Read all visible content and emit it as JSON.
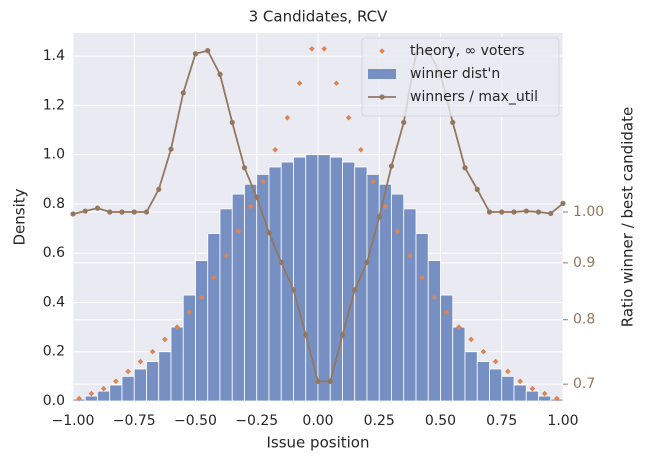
{
  "chart_data": {
    "type": "histogram",
    "title": "3 Candidates, RCV",
    "xlabel": "Issue position",
    "ylabel": "Density",
    "y2label": "Ratio winner / best candidate",
    "bins": [
      -1,
      -0.95,
      -0.9,
      -0.85,
      -0.8,
      -0.75,
      -0.7,
      -0.65,
      -0.6,
      -0.55,
      -0.5,
      -0.45,
      -0.4,
      -0.35,
      -0.3,
      -0.25,
      -0.2,
      -0.15,
      -0.1,
      -0.05,
      0,
      0.05,
      0.1,
      0.15,
      0.2,
      0.25,
      0.3,
      0.35,
      0.4,
      0.45,
      0.5,
      0.55,
      0.6,
      0.65,
      0.7,
      0.75,
      0.8,
      0.85,
      0.9,
      0.95,
      1
    ],
    "series": [
      {
        "name": "theory, ∞ voters",
        "type": "scatter",
        "color": "#dd8452",
        "x": [
          -0.975,
          -0.925,
          -0.875,
          -0.825,
          -0.775,
          -0.725,
          -0.675,
          -0.625,
          -0.575,
          -0.525,
          -0.475,
          -0.425,
          -0.375,
          -0.325,
          -0.275,
          -0.225,
          -0.175,
          -0.125,
          -0.075,
          -0.025,
          0.025,
          0.075,
          0.125,
          0.175,
          0.225,
          0.275,
          0.325,
          0.375,
          0.425,
          0.475,
          0.525,
          0.575,
          0.625,
          0.675,
          0.725,
          0.775,
          0.825,
          0.875,
          0.925,
          0.975
        ],
        "values": [
          0.01,
          0.03,
          0.05,
          0.08,
          0.12,
          0.16,
          0.2,
          0.25,
          0.3,
          0.36,
          0.42,
          0.5,
          0.59,
          0.69,
          0.79,
          0.89,
          1.02,
          1.15,
          1.29,
          1.43,
          1.43,
          1.29,
          1.15,
          1.02,
          0.89,
          0.79,
          0.69,
          0.59,
          0.5,
          0.42,
          0.36,
          0.3,
          0.25,
          0.2,
          0.16,
          0.12,
          0.08,
          0.05,
          0.03,
          0.01
        ]
      },
      {
        "name": "winner dist'n",
        "type": "histogram",
        "color": "#7790c4",
        "values": [
          0.008,
          0.02,
          0.04,
          0.065,
          0.1,
          0.13,
          0.16,
          0.2,
          0.3,
          0.43,
          0.57,
          0.68,
          0.78,
          0.84,
          0.88,
          0.92,
          0.95,
          0.97,
          0.99,
          1.0,
          1.0,
          0.99,
          0.97,
          0.95,
          0.92,
          0.88,
          0.84,
          0.78,
          0.68,
          0.57,
          0.43,
          0.3,
          0.2,
          0.16,
          0.13,
          0.1,
          0.065,
          0.04,
          0.02,
          0.008
        ]
      },
      {
        "name": "winners / max_util",
        "type": "line",
        "axis": "y2",
        "color": "#937860",
        "x": [
          -1,
          -0.95,
          -0.9,
          -0.85,
          -0.8,
          -0.75,
          -0.7,
          -0.65,
          -0.6,
          -0.55,
          -0.5,
          -0.45,
          -0.4,
          -0.35,
          -0.3,
          -0.25,
          -0.2,
          -0.15,
          -0.1,
          -0.05,
          0,
          0.05,
          0.1,
          0.15,
          0.2,
          0.25,
          0.3,
          0.35,
          0.4,
          0.45,
          0.5,
          0.55,
          0.6,
          0.65,
          0.7,
          0.75,
          0.8,
          0.85,
          0.9,
          0.95,
          1
        ],
        "values": [
          0.996,
          1.002,
          1.008,
          1.0,
          1.0,
          1.0,
          1.0,
          1.048,
          1.139,
          1.28,
          1.388,
          1.397,
          1.33,
          1.204,
          1.096,
          1.031,
          0.958,
          0.901,
          0.851,
          0.775,
          0.704,
          0.704,
          0.775,
          0.851,
          0.901,
          0.99,
          1.1,
          1.204,
          1.388,
          1.397,
          1.33,
          1.204,
          1.096,
          1.048,
          1.0,
          1.0,
          1.0,
          1.002,
          1.0,
          0.997,
          1.018
        ]
      }
    ],
    "xlim": [
      -1,
      1
    ],
    "xticks": [
      {
        "value": -1,
        "label": "−1.00"
      },
      {
        "value": -0.75,
        "label": "−0.75"
      },
      {
        "value": -0.5,
        "label": "−0.50"
      },
      {
        "value": -0.25,
        "label": "−0.25"
      },
      {
        "value": 0,
        "label": "0.00"
      },
      {
        "value": 0.25,
        "label": "0.25"
      },
      {
        "value": 0.5,
        "label": "0.50"
      },
      {
        "value": 0.75,
        "label": "0.75"
      },
      {
        "value": 1,
        "label": "1.00"
      }
    ],
    "ylim": [
      0,
      1.494
    ],
    "yticks": [
      {
        "value": 0,
        "label": "0.0"
      },
      0.2,
      0.4,
      0.6,
      0.8,
      {
        "value": 1,
        "label": "1.0"
      },
      1.2,
      1.4
    ],
    "y2lim": [
      0.676,
      1.449
    ],
    "y2scale": "log",
    "y2ticks": [
      0.7,
      0.8,
      0.9,
      {
        "value": 1,
        "label": "1.00"
      }
    ],
    "grid": true,
    "legend": "upper right"
  }
}
